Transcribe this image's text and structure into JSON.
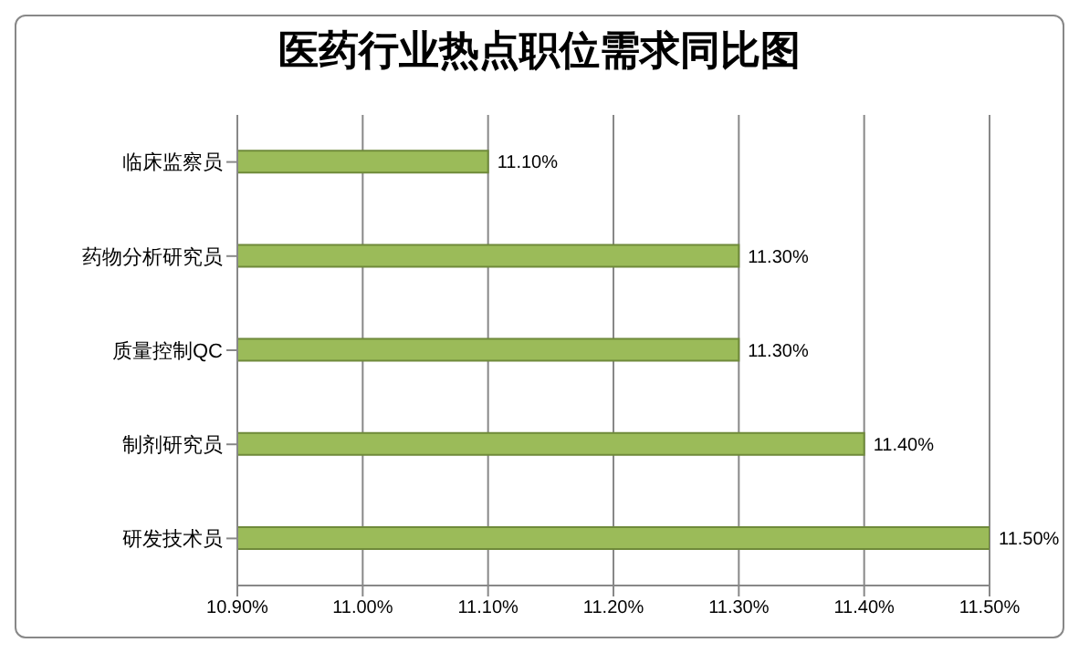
{
  "chart_data": {
    "type": "bar",
    "orientation": "horizontal",
    "title": "医药行业热点职位需求同比图",
    "categories": [
      "临床监察员",
      "药物分析研究员",
      "质量控制QC",
      "制剂研究员",
      "研发技术员"
    ],
    "values": [
      11.1,
      11.3,
      11.3,
      11.4,
      11.5
    ],
    "value_labels": [
      "11.10%",
      "11.30%",
      "11.30%",
      "11.40%",
      "11.50%"
    ],
    "color": "#9bbb59",
    "xlim": [
      10.9,
      11.5
    ],
    "xticks": [
      {
        "value": 10.9,
        "label": "10.90%"
      },
      {
        "value": 11.0,
        "label": "11.00%"
      },
      {
        "value": 11.1,
        "label": "11.10%"
      },
      {
        "value": 11.2,
        "label": "11.20%"
      },
      {
        "value": 11.3,
        "label": "11.30%"
      },
      {
        "value": 11.4,
        "label": "11.40%"
      },
      {
        "value": 11.5,
        "label": "11.50%"
      }
    ],
    "grid": "x",
    "legend": false
  }
}
